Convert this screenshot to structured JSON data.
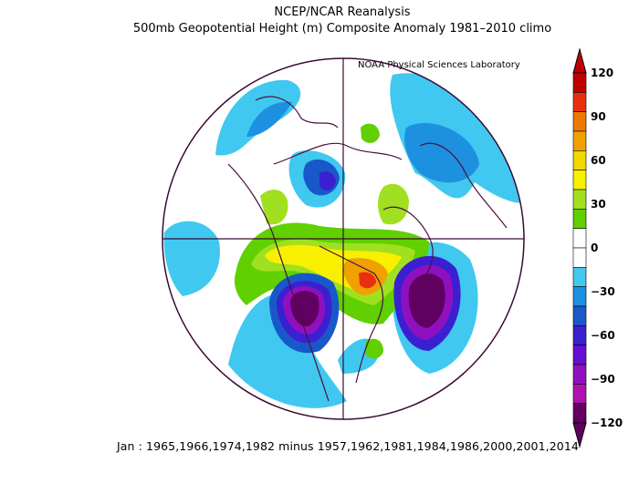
{
  "title": "NCEP/NCAR Reanalysis",
  "subtitle": "500mb Geopotential Height (m) Composite Anomaly 1981–2010 climo",
  "credit": "NOAA Physical Sciences Laboratory",
  "footer": "Jan : 1965,1966,1974,1982 minus 1957,1962,1981,1984,1986,2000,2001,2014",
  "colorbar": {
    "labels": [
      "120",
      "90",
      "60",
      "30",
      "0",
      "−30",
      "−60",
      "−90",
      "−120"
    ],
    "colors": [
      "#c00000",
      "#e83010",
      "#f07800",
      "#f0a000",
      "#f0d800",
      "#f8f000",
      "#a0e020",
      "#60d000",
      "#ffffff",
      "#ffffff",
      "#40c8f0",
      "#1e90e0",
      "#1858c8",
      "#3a20d0",
      "#6410d0",
      "#9010c0",
      "#b010b0",
      "#600060"
    ]
  }
}
